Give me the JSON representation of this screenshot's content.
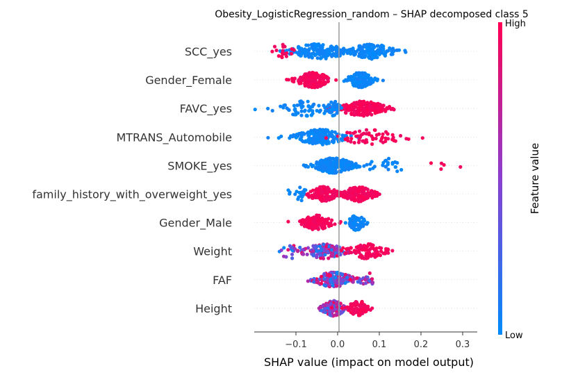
{
  "chart_data": {
    "type": "scatter",
    "subtype": "shap-beeswarm",
    "title": "Obesity_LogisticRegression_random – SHAP decomposed class 5",
    "xlabel": "SHAP value (impact on model output)",
    "xlim": [
      -0.2,
      0.335
    ],
    "x_ticks": [
      -0.1,
      0.0,
      0.1,
      0.2,
      0.3
    ],
    "x_tick_labels": [
      "−0.1",
      "0.0",
      "0.1",
      "0.2",
      "0.3"
    ],
    "colorbar": {
      "title": "Feature value",
      "high_label": "High",
      "low_label": "Low",
      "low_color": "#008bfb",
      "high_color": "#ff0052"
    },
    "features": [
      {
        "name": "SCC_yes",
        "clusters": [
          {
            "x": -0.045,
            "spread": 0.09,
            "count": 150,
            "color": "low"
          },
          {
            "x": 0.082,
            "spread": 0.065,
            "count": 150,
            "color": "low"
          },
          {
            "x": -0.135,
            "spread": 0.03,
            "count": 18,
            "color": "high"
          }
        ]
      },
      {
        "name": "Gender_Female",
        "clusters": [
          {
            "x": -0.058,
            "spread": 0.05,
            "count": 170,
            "color": "high"
          },
          {
            "x": 0.055,
            "spread": 0.038,
            "count": 150,
            "color": "low"
          }
        ]
      },
      {
        "name": "FAVC_yes",
        "clusters": [
          {
            "x": -0.08,
            "spread": 0.09,
            "count": 60,
            "color": "low"
          },
          {
            "x": 0.06,
            "spread": 0.07,
            "count": 200,
            "color": "high"
          },
          {
            "x": -0.01,
            "spread": 0.02,
            "count": 40,
            "color": "low"
          }
        ]
      },
      {
        "name": "MTRANS_Automobile",
        "clusters": [
          {
            "x": -0.04,
            "spread": 0.075,
            "count": 170,
            "color": "low"
          },
          {
            "x": 0.08,
            "spread": 0.1,
            "count": 60,
            "color": "high"
          }
        ]
      },
      {
        "name": "SMOKE_yes",
        "clusters": [
          {
            "x": -0.01,
            "spread": 0.06,
            "count": 230,
            "color": "low"
          },
          {
            "x": 0.12,
            "spread": 0.07,
            "count": 25,
            "color": "low"
          },
          {
            "x": 0.26,
            "spread": 0.05,
            "count": 5,
            "color": "high"
          }
        ]
      },
      {
        "name": "family_history_with_overweight_yes",
        "clusters": [
          {
            "x": -0.035,
            "spread": 0.045,
            "count": 120,
            "color": "high"
          },
          {
            "x": 0.05,
            "spread": 0.05,
            "count": 150,
            "color": "high"
          },
          {
            "x": -0.1,
            "spread": 0.04,
            "count": 18,
            "color": "low"
          }
        ]
      },
      {
        "name": "Gender_Male",
        "clusters": [
          {
            "x": -0.05,
            "spread": 0.045,
            "count": 140,
            "color": "high"
          },
          {
            "x": 0.045,
            "spread": 0.025,
            "count": 70,
            "color": "low"
          }
        ]
      },
      {
        "name": "Weight",
        "clusters": [
          {
            "x": -0.03,
            "spread": 0.06,
            "count": 120,
            "color": "mix"
          },
          {
            "x": 0.07,
            "spread": 0.055,
            "count": 90,
            "color": "high"
          },
          {
            "x": -0.11,
            "spread": 0.04,
            "count": 20,
            "color": "mix"
          }
        ]
      },
      {
        "name": "FAF",
        "clusters": [
          {
            "x": -0.01,
            "spread": 0.06,
            "count": 170,
            "color": "mix"
          },
          {
            "x": 0.07,
            "spread": 0.025,
            "count": 20,
            "color": "mix"
          }
        ]
      },
      {
        "name": "Height",
        "clusters": [
          {
            "x": -0.01,
            "spread": 0.035,
            "count": 150,
            "color": "mix"
          },
          {
            "x": 0.05,
            "spread": 0.03,
            "count": 80,
            "color": "high"
          }
        ]
      }
    ]
  }
}
